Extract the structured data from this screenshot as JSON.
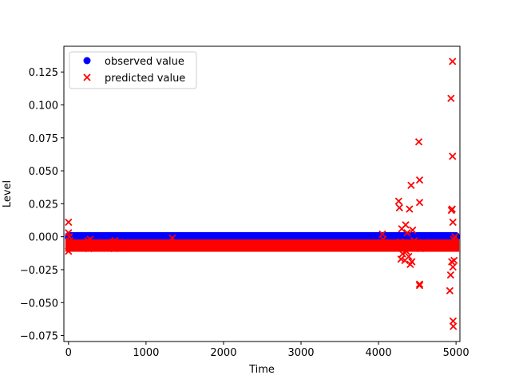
{
  "chart_data": {
    "type": "scatter",
    "title": "",
    "xlabel": "Time",
    "ylabel": "Level",
    "xlim": [
      -60,
      5050
    ],
    "ylim": [
      -0.0795,
      0.1445
    ],
    "xticks": [
      0,
      1000,
      2000,
      3000,
      4000,
      5000
    ],
    "yticks": [
      -0.075,
      -0.05,
      -0.025,
      0.0,
      0.025,
      0.05,
      0.075,
      0.1,
      0.125
    ],
    "ytick_labels": [
      "−0.075",
      "−0.050",
      "−0.025",
      "0.000",
      "0.025",
      "0.050",
      "0.075",
      "0.100",
      "0.125"
    ],
    "grid": false,
    "legend_position": "top-left",
    "series": [
      {
        "name": "observed value",
        "marker": "circle",
        "color": "#0000ff",
        "band": {
          "x_start": 0,
          "x_end": 5000,
          "y_min": -0.0008,
          "y_max": 0.0008
        }
      },
      {
        "name": "predicted value",
        "marker": "x",
        "color": "#ff0000",
        "band": {
          "x_start": 0,
          "x_end": 5000,
          "y_min": -0.009,
          "y_max": -0.0045
        },
        "points": [
          [
            0,
            0.011
          ],
          [
            0,
            0.003
          ],
          [
            0,
            -0.011
          ],
          [
            5,
            -0.008
          ],
          [
            10,
            0.0
          ],
          [
            15,
            -0.003
          ],
          [
            250,
            -0.003
          ],
          [
            260,
            -0.009
          ],
          [
            270,
            -0.005
          ],
          [
            280,
            -0.002
          ],
          [
            580,
            -0.004
          ],
          [
            590,
            -0.009
          ],
          [
            600,
            -0.003
          ],
          [
            700,
            -0.006
          ],
          [
            800,
            -0.006
          ],
          [
            1340,
            -0.001
          ],
          [
            1350,
            -0.008
          ],
          [
            1600,
            -0.005
          ],
          [
            1700,
            -0.006
          ],
          [
            4050,
            0.002
          ],
          [
            4060,
            -0.002
          ],
          [
            4230,
            -0.007
          ],
          [
            4260,
            0.027
          ],
          [
            4270,
            0.022
          ],
          [
            4280,
            -0.004
          ],
          [
            4290,
            -0.017
          ],
          [
            4300,
            0.006
          ],
          [
            4310,
            -0.013
          ],
          [
            4320,
            -0.009
          ],
          [
            4340,
            -0.018
          ],
          [
            4350,
            0.009
          ],
          [
            4360,
            -0.011
          ],
          [
            4370,
            0.003
          ],
          [
            4380,
            -0.006
          ],
          [
            4390,
            -0.015
          ],
          [
            4400,
            0.021
          ],
          [
            4410,
            -0.021
          ],
          [
            4420,
            0.039
          ],
          [
            4430,
            -0.019
          ],
          [
            4440,
            0.005
          ],
          [
            4450,
            -0.005
          ],
          [
            4460,
            -0.003
          ],
          [
            4500,
            -0.008
          ],
          [
            4520,
            0.072
          ],
          [
            4530,
            0.043
          ],
          [
            4530,
            0.026
          ],
          [
            4530,
            -0.036
          ],
          [
            4530,
            -0.037
          ],
          [
            4540,
            -0.009
          ],
          [
            4920,
            -0.041
          ],
          [
            4930,
            -0.029
          ],
          [
            4935,
            0.105
          ],
          [
            4940,
            0.02
          ],
          [
            4945,
            -0.019
          ],
          [
            4950,
            0.021
          ],
          [
            4955,
            0.133
          ],
          [
            4955,
            0.061
          ],
          [
            4960,
            0.011
          ],
          [
            4960,
            -0.023
          ],
          [
            4962,
            -0.064
          ],
          [
            4965,
            -0.068
          ],
          [
            4970,
            -0.002
          ],
          [
            4975,
            -0.018
          ],
          [
            4980,
            -0.006
          ],
          [
            4985,
            0.0
          ],
          [
            4990,
            -0.005
          ]
        ]
      }
    ]
  }
}
